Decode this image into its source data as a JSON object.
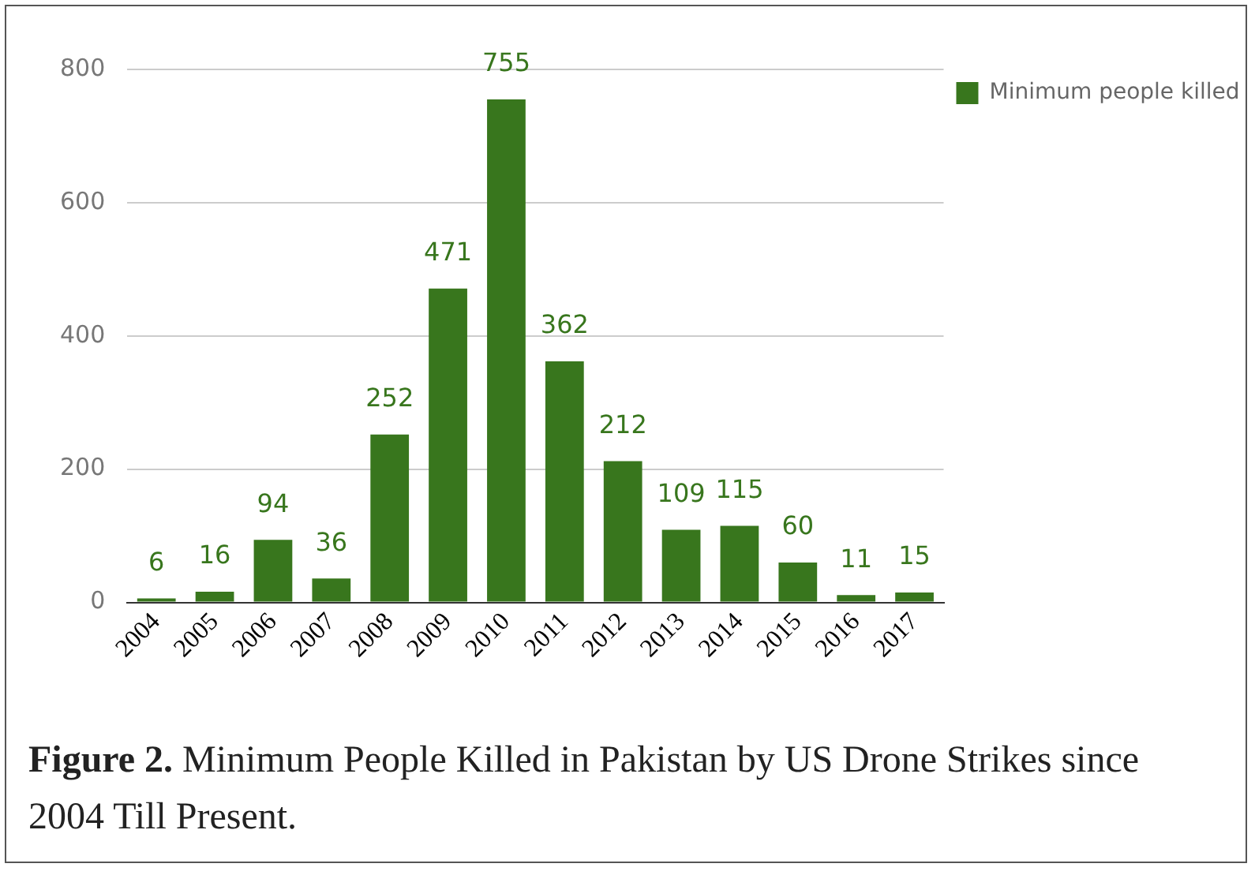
{
  "chart_data": {
    "type": "bar",
    "categories": [
      "2004",
      "2005",
      "2006",
      "2007",
      "2008",
      "2009",
      "2010",
      "2011",
      "2012",
      "2013",
      "2014",
      "2015",
      "2016",
      "2017"
    ],
    "series": [
      {
        "name": "Minimum people killed",
        "color": "#38761d",
        "values": [
          6,
          16,
          94,
          36,
          252,
          471,
          755,
          362,
          212,
          109,
          115,
          60,
          11,
          15
        ]
      }
    ],
    "ylim": [
      0,
      800
    ],
    "yticks": [
      0,
      200,
      400,
      600,
      800
    ],
    "grid": "y",
    "legend": "top right",
    "data_labels": true,
    "annotations": [
      "Figure 2.",
      "Minimum People Killed in Pakistan by US Drone Strikes since 2004 Till Present."
    ]
  }
}
